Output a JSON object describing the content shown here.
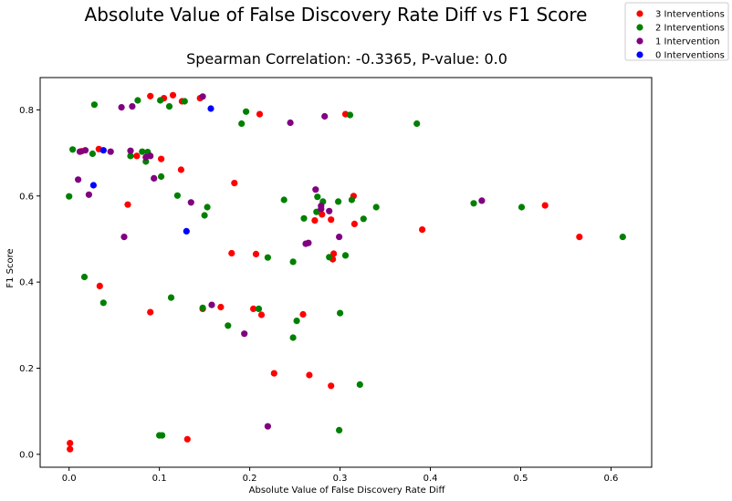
{
  "chart_data": {
    "type": "scatter",
    "suptitle": "Absolute Value of False Discovery Rate Diff vs F1 Score",
    "title": "Spearman Correlation: -0.3365, P-value: 0.0",
    "xlabel": "Absolute Value of False Discovery Rate Diff",
    "ylabel": "F1 Score",
    "xlim": [
      -0.032,
      0.645
    ],
    "ylim": [
      -0.03,
      0.875
    ],
    "xticks": [
      "0.0",
      "0.1",
      "0.2",
      "0.3",
      "0.4",
      "0.5",
      "0.6"
    ],
    "yticks": [
      "0.0",
      "0.2",
      "0.4",
      "0.6",
      "0.8"
    ],
    "grid": false,
    "legend_position": "upper-right-outside",
    "series": [
      {
        "name": "3 Interventions",
        "color": "#ff0000",
        "points": [
          [
            0.001,
            0.026
          ],
          [
            0.001,
            0.012
          ],
          [
            0.014,
            0.704
          ],
          [
            0.033,
            0.709
          ],
          [
            0.034,
            0.391
          ],
          [
            0.065,
            0.58
          ],
          [
            0.075,
            0.693
          ],
          [
            0.09,
            0.33
          ],
          [
            0.09,
            0.832
          ],
          [
            0.102,
            0.686
          ],
          [
            0.105,
            0.827
          ],
          [
            0.115,
            0.834
          ],
          [
            0.124,
            0.661
          ],
          [
            0.125,
            0.82
          ],
          [
            0.131,
            0.035
          ],
          [
            0.145,
            0.827
          ],
          [
            0.148,
            0.338
          ],
          [
            0.168,
            0.342
          ],
          [
            0.18,
            0.467
          ],
          [
            0.183,
            0.63
          ],
          [
            0.204,
            0.338
          ],
          [
            0.207,
            0.465
          ],
          [
            0.211,
            0.79
          ],
          [
            0.213,
            0.324
          ],
          [
            0.227,
            0.188
          ],
          [
            0.259,
            0.325
          ],
          [
            0.266,
            0.184
          ],
          [
            0.272,
            0.543
          ],
          [
            0.28,
            0.557
          ],
          [
            0.29,
            0.545
          ],
          [
            0.29,
            0.159
          ],
          [
            0.292,
            0.453
          ],
          [
            0.293,
            0.466
          ],
          [
            0.306,
            0.79
          ],
          [
            0.315,
            0.6
          ],
          [
            0.316,
            0.535
          ],
          [
            0.391,
            0.522
          ],
          [
            0.527,
            0.578
          ],
          [
            0.565,
            0.505
          ]
        ]
      },
      {
        "name": "2 Interventions",
        "color": "#008000",
        "points": [
          [
            0.0,
            0.599
          ],
          [
            0.004,
            0.708
          ],
          [
            0.017,
            0.412
          ],
          [
            0.026,
            0.698
          ],
          [
            0.028,
            0.812
          ],
          [
            0.038,
            0.352
          ],
          [
            0.068,
            0.693
          ],
          [
            0.076,
            0.822
          ],
          [
            0.081,
            0.703
          ],
          [
            0.085,
            0.68
          ],
          [
            0.087,
            0.702
          ],
          [
            0.1,
            0.044
          ],
          [
            0.101,
            0.822
          ],
          [
            0.102,
            0.645
          ],
          [
            0.103,
            0.044
          ],
          [
            0.111,
            0.808
          ],
          [
            0.113,
            0.364
          ],
          [
            0.12,
            0.601
          ],
          [
            0.128,
            0.82
          ],
          [
            0.148,
            0.34
          ],
          [
            0.15,
            0.555
          ],
          [
            0.153,
            0.574
          ],
          [
            0.176,
            0.299
          ],
          [
            0.191,
            0.768
          ],
          [
            0.196,
            0.796
          ],
          [
            0.21,
            0.338
          ],
          [
            0.22,
            0.457
          ],
          [
            0.238,
            0.591
          ],
          [
            0.248,
            0.447
          ],
          [
            0.248,
            0.271
          ],
          [
            0.252,
            0.31
          ],
          [
            0.26,
            0.548
          ],
          [
            0.274,
            0.563
          ],
          [
            0.275,
            0.598
          ],
          [
            0.281,
            0.587
          ],
          [
            0.288,
            0.458
          ],
          [
            0.298,
            0.587
          ],
          [
            0.299,
            0.056
          ],
          [
            0.3,
            0.328
          ],
          [
            0.306,
            0.462
          ],
          [
            0.311,
            0.788
          ],
          [
            0.313,
            0.591
          ],
          [
            0.322,
            0.162
          ],
          [
            0.326,
            0.547
          ],
          [
            0.34,
            0.574
          ],
          [
            0.385,
            0.768
          ],
          [
            0.448,
            0.583
          ],
          [
            0.501,
            0.574
          ],
          [
            0.613,
            0.505
          ]
        ]
      },
      {
        "name": "1 Intervention",
        "color": "#800080",
        "points": [
          [
            0.01,
            0.638
          ],
          [
            0.012,
            0.703
          ],
          [
            0.018,
            0.706
          ],
          [
            0.022,
            0.603
          ],
          [
            0.046,
            0.703
          ],
          [
            0.058,
            0.806
          ],
          [
            0.061,
            0.505
          ],
          [
            0.068,
            0.705
          ],
          [
            0.07,
            0.808
          ],
          [
            0.085,
            0.69
          ],
          [
            0.09,
            0.693
          ],
          [
            0.094,
            0.641
          ],
          [
            0.148,
            0.831
          ],
          [
            0.135,
            0.585
          ],
          [
            0.158,
            0.347
          ],
          [
            0.194,
            0.28
          ],
          [
            0.22,
            0.065
          ],
          [
            0.245,
            0.77
          ],
          [
            0.262,
            0.489
          ],
          [
            0.265,
            0.491
          ],
          [
            0.273,
            0.615
          ],
          [
            0.279,
            0.577
          ],
          [
            0.279,
            0.57
          ],
          [
            0.283,
            0.785
          ],
          [
            0.288,
            0.565
          ],
          [
            0.299,
            0.505
          ],
          [
            0.457,
            0.589
          ]
        ]
      },
      {
        "name": "0 Interventions",
        "color": "#0000ff",
        "points": [
          [
            0.027,
            0.625
          ],
          [
            0.038,
            0.706
          ],
          [
            0.13,
            0.518
          ],
          [
            0.157,
            0.803
          ]
        ]
      }
    ]
  }
}
